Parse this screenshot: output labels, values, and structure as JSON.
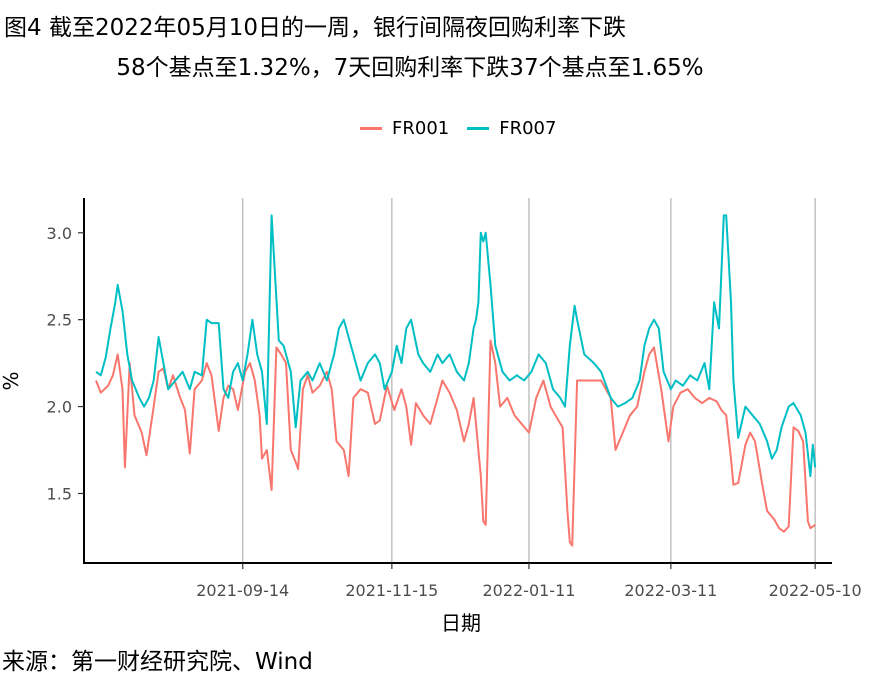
{
  "title": {
    "line1": "图4  截至2022年05月10日的一周，银行间隔夜回购利率下跌",
    "line2": "58个基点至1.32%，7天回购利率下跌37个基点至1.65%"
  },
  "source": "来源：第一财经研究院、Wind",
  "chart_data": {
    "type": "line",
    "xlabel": "日期",
    "ylabel": "%",
    "ylim": [
      1.1,
      3.2
    ],
    "yticks": [
      1.5,
      2.0,
      2.5,
      3.0
    ],
    "ytick_labels": [
      "1.5",
      "2.0",
      "2.5",
      "3.0"
    ],
    "xlim": [
      "2021-07-10",
      "2022-05-17"
    ],
    "xticks": [
      "2021-09-14",
      "2021-11-15",
      "2022-01-11",
      "2022-03-11",
      "2022-05-10"
    ],
    "grid": "vertical-major",
    "legend_position": "top",
    "colors": {
      "FR001": "#F8766D",
      "FR007": "#00BFC4"
    },
    "series": [
      {
        "name": "FR001",
        "points": [
          [
            "2021-07-15",
            2.15
          ],
          [
            "2021-07-17",
            2.08
          ],
          [
            "2021-07-20",
            2.12
          ],
          [
            "2021-07-22",
            2.18
          ],
          [
            "2021-07-24",
            2.3
          ],
          [
            "2021-07-26",
            2.1
          ],
          [
            "2021-07-27",
            1.65
          ],
          [
            "2021-07-29",
            2.25
          ],
          [
            "2021-07-31",
            1.95
          ],
          [
            "2021-08-03",
            1.85
          ],
          [
            "2021-08-05",
            1.72
          ],
          [
            "2021-08-08",
            2.0
          ],
          [
            "2021-08-10",
            2.2
          ],
          [
            "2021-08-12",
            2.22
          ],
          [
            "2021-08-14",
            2.1
          ],
          [
            "2021-08-16",
            2.18
          ],
          [
            "2021-08-19",
            2.05
          ],
          [
            "2021-08-21",
            1.98
          ],
          [
            "2021-08-23",
            1.73
          ],
          [
            "2021-08-25",
            2.1
          ],
          [
            "2021-08-28",
            2.15
          ],
          [
            "2021-08-30",
            2.25
          ],
          [
            "2021-09-01",
            2.18
          ],
          [
            "2021-09-04",
            1.86
          ],
          [
            "2021-09-06",
            2.05
          ],
          [
            "2021-09-08",
            2.12
          ],
          [
            "2021-09-10",
            2.1
          ],
          [
            "2021-09-12",
            1.98
          ],
          [
            "2021-09-15",
            2.2
          ],
          [
            "2021-09-17",
            2.25
          ],
          [
            "2021-09-19",
            2.15
          ],
          [
            "2021-09-21",
            1.95
          ],
          [
            "2021-09-22",
            1.7
          ],
          [
            "2021-09-24",
            1.75
          ],
          [
            "2021-09-26",
            1.52
          ],
          [
            "2021-09-28",
            2.34
          ],
          [
            "2021-09-30",
            2.3
          ],
          [
            "2021-10-02",
            2.25
          ],
          [
            "2021-10-04",
            1.75
          ],
          [
            "2021-10-06",
            1.68
          ],
          [
            "2021-10-07",
            1.64
          ],
          [
            "2021-10-09",
            2.1
          ],
          [
            "2021-10-11",
            2.18
          ],
          [
            "2021-10-13",
            2.08
          ],
          [
            "2021-10-16",
            2.12
          ],
          [
            "2021-10-19",
            2.2
          ],
          [
            "2021-10-21",
            2.1
          ],
          [
            "2021-10-23",
            1.8
          ],
          [
            "2021-10-26",
            1.75
          ],
          [
            "2021-10-28",
            1.6
          ],
          [
            "2021-10-30",
            2.05
          ],
          [
            "2021-11-02",
            2.1
          ],
          [
            "2021-11-05",
            2.08
          ],
          [
            "2021-11-08",
            1.9
          ],
          [
            "2021-11-10",
            1.92
          ],
          [
            "2021-11-13",
            2.12
          ],
          [
            "2021-11-16",
            1.98
          ],
          [
            "2021-11-19",
            2.1
          ],
          [
            "2021-11-21",
            2.0
          ],
          [
            "2021-11-23",
            1.78
          ],
          [
            "2021-11-25",
            2.02
          ],
          [
            "2021-11-28",
            1.95
          ],
          [
            "2021-12-01",
            1.9
          ],
          [
            "2021-12-04",
            2.05
          ],
          [
            "2021-12-06",
            2.15
          ],
          [
            "2021-12-09",
            2.08
          ],
          [
            "2021-12-12",
            1.98
          ],
          [
            "2021-12-15",
            1.8
          ],
          [
            "2021-12-17",
            1.9
          ],
          [
            "2021-12-19",
            2.05
          ],
          [
            "2021-12-22",
            1.6
          ],
          [
            "2021-12-23",
            1.34
          ],
          [
            "2021-12-24",
            1.32
          ],
          [
            "2021-12-26",
            2.38
          ],
          [
            "2021-12-28",
            2.25
          ],
          [
            "2021-12-30",
            2.0
          ],
          [
            "2022-01-02",
            2.05
          ],
          [
            "2022-01-05",
            1.95
          ],
          [
            "2022-01-08",
            1.9
          ],
          [
            "2022-01-11",
            1.85
          ],
          [
            "2022-01-14",
            2.05
          ],
          [
            "2022-01-17",
            2.15
          ],
          [
            "2022-01-20",
            2.0
          ],
          [
            "2022-01-22",
            1.95
          ],
          [
            "2022-01-25",
            1.88
          ],
          [
            "2022-01-27",
            1.4
          ],
          [
            "2022-01-28",
            1.22
          ],
          [
            "2022-01-29",
            1.2
          ],
          [
            "2022-01-31",
            2.15
          ],
          [
            "2022-02-07",
            2.15
          ],
          [
            "2022-02-10",
            2.15
          ],
          [
            "2022-02-14",
            2.05
          ],
          [
            "2022-02-16",
            1.75
          ],
          [
            "2022-02-19",
            1.85
          ],
          [
            "2022-02-22",
            1.95
          ],
          [
            "2022-02-25",
            2.0
          ],
          [
            "2022-02-28",
            2.2
          ],
          [
            "2022-03-02",
            2.3
          ],
          [
            "2022-03-04",
            2.34
          ],
          [
            "2022-03-07",
            2.1
          ],
          [
            "2022-03-10",
            1.8
          ],
          [
            "2022-03-12",
            2.0
          ],
          [
            "2022-03-15",
            2.08
          ],
          [
            "2022-03-18",
            2.1
          ],
          [
            "2022-03-21",
            2.05
          ],
          [
            "2022-03-24",
            2.02
          ],
          [
            "2022-03-27",
            2.05
          ],
          [
            "2022-03-30",
            2.03
          ],
          [
            "2022-04-01",
            1.98
          ],
          [
            "2022-04-03",
            1.95
          ],
          [
            "2022-04-05",
            1.7
          ],
          [
            "2022-04-06",
            1.55
          ],
          [
            "2022-04-08",
            1.56
          ],
          [
            "2022-04-11",
            1.78
          ],
          [
            "2022-04-13",
            1.85
          ],
          [
            "2022-04-15",
            1.8
          ],
          [
            "2022-04-18",
            1.55
          ],
          [
            "2022-04-20",
            1.4
          ],
          [
            "2022-04-23",
            1.35
          ],
          [
            "2022-04-25",
            1.3
          ],
          [
            "2022-04-27",
            1.28
          ],
          [
            "2022-04-29",
            1.31
          ],
          [
            "2022-05-01",
            1.88
          ],
          [
            "2022-05-03",
            1.86
          ],
          [
            "2022-05-05",
            1.8
          ],
          [
            "2022-05-07",
            1.34
          ],
          [
            "2022-05-08",
            1.3
          ],
          [
            "2022-05-10",
            1.32
          ]
        ]
      },
      {
        "name": "FR007",
        "points": [
          [
            "2021-07-15",
            2.2
          ],
          [
            "2021-07-17",
            2.18
          ],
          [
            "2021-07-19",
            2.28
          ],
          [
            "2021-07-21",
            2.45
          ],
          [
            "2021-07-23",
            2.6
          ],
          [
            "2021-07-24",
            2.7
          ],
          [
            "2021-07-26",
            2.55
          ],
          [
            "2021-07-28",
            2.3
          ],
          [
            "2021-07-30",
            2.15
          ],
          [
            "2021-08-02",
            2.05
          ],
          [
            "2021-08-04",
            2.0
          ],
          [
            "2021-08-06",
            2.05
          ],
          [
            "2021-08-08",
            2.15
          ],
          [
            "2021-08-10",
            2.4
          ],
          [
            "2021-08-12",
            2.25
          ],
          [
            "2021-08-14",
            2.1
          ],
          [
            "2021-08-17",
            2.15
          ],
          [
            "2021-08-20",
            2.2
          ],
          [
            "2021-08-23",
            2.1
          ],
          [
            "2021-08-25",
            2.2
          ],
          [
            "2021-08-28",
            2.18
          ],
          [
            "2021-08-30",
            2.5
          ],
          [
            "2021-09-01",
            2.48
          ],
          [
            "2021-09-04",
            2.48
          ],
          [
            "2021-09-06",
            2.1
          ],
          [
            "2021-09-08",
            2.05
          ],
          [
            "2021-09-10",
            2.2
          ],
          [
            "2021-09-12",
            2.25
          ],
          [
            "2021-09-14",
            2.15
          ],
          [
            "2021-09-16",
            2.3
          ],
          [
            "2021-09-18",
            2.5
          ],
          [
            "2021-09-20",
            2.3
          ],
          [
            "2021-09-22",
            2.2
          ],
          [
            "2021-09-24",
            1.9
          ],
          [
            "2021-09-26",
            3.1
          ],
          [
            "2021-09-29",
            2.38
          ],
          [
            "2021-10-01",
            2.35
          ],
          [
            "2021-10-04",
            2.2
          ],
          [
            "2021-10-06",
            1.88
          ],
          [
            "2021-10-08",
            2.15
          ],
          [
            "2021-10-11",
            2.2
          ],
          [
            "2021-10-13",
            2.15
          ],
          [
            "2021-10-16",
            2.25
          ],
          [
            "2021-10-19",
            2.15
          ],
          [
            "2021-10-22",
            2.3
          ],
          [
            "2021-10-24",
            2.45
          ],
          [
            "2021-10-26",
            2.5
          ],
          [
            "2021-10-28",
            2.4
          ],
          [
            "2021-10-31",
            2.25
          ],
          [
            "2021-11-02",
            2.15
          ],
          [
            "2021-11-05",
            2.25
          ],
          [
            "2021-11-08",
            2.3
          ],
          [
            "2021-11-10",
            2.25
          ],
          [
            "2021-11-12",
            2.1
          ],
          [
            "2021-11-15",
            2.2
          ],
          [
            "2021-11-17",
            2.35
          ],
          [
            "2021-11-19",
            2.25
          ],
          [
            "2021-11-21",
            2.45
          ],
          [
            "2021-11-23",
            2.5
          ],
          [
            "2021-11-26",
            2.3
          ],
          [
            "2021-11-28",
            2.25
          ],
          [
            "2021-12-01",
            2.2
          ],
          [
            "2021-12-04",
            2.3
          ],
          [
            "2021-12-06",
            2.25
          ],
          [
            "2021-12-09",
            2.3
          ],
          [
            "2021-12-12",
            2.2
          ],
          [
            "2021-12-15",
            2.15
          ],
          [
            "2021-12-17",
            2.25
          ],
          [
            "2021-12-19",
            2.45
          ],
          [
            "2021-12-20",
            2.5
          ],
          [
            "2021-12-21",
            2.6
          ],
          [
            "2021-12-22",
            3.0
          ],
          [
            "2021-12-23",
            2.95
          ],
          [
            "2021-12-24",
            3.0
          ],
          [
            "2021-12-26",
            2.7
          ],
          [
            "2021-12-28",
            2.35
          ],
          [
            "2021-12-31",
            2.2
          ],
          [
            "2022-01-03",
            2.15
          ],
          [
            "2022-01-06",
            2.18
          ],
          [
            "2022-01-09",
            2.15
          ],
          [
            "2022-01-12",
            2.2
          ],
          [
            "2022-01-15",
            2.3
          ],
          [
            "2022-01-18",
            2.25
          ],
          [
            "2022-01-21",
            2.1
          ],
          [
            "2022-01-24",
            2.05
          ],
          [
            "2022-01-26",
            2.0
          ],
          [
            "2022-01-28",
            2.35
          ],
          [
            "2022-01-30",
            2.58
          ],
          [
            "2022-01-31",
            2.5
          ],
          [
            "2022-02-03",
            2.3
          ],
          [
            "2022-02-07",
            2.25
          ],
          [
            "2022-02-10",
            2.2
          ],
          [
            "2022-02-14",
            2.05
          ],
          [
            "2022-02-17",
            2.0
          ],
          [
            "2022-02-20",
            2.02
          ],
          [
            "2022-02-23",
            2.05
          ],
          [
            "2022-02-26",
            2.15
          ],
          [
            "2022-02-28",
            2.35
          ],
          [
            "2022-03-02",
            2.45
          ],
          [
            "2022-03-04",
            2.5
          ],
          [
            "2022-03-06",
            2.45
          ],
          [
            "2022-03-08",
            2.2
          ],
          [
            "2022-03-11",
            2.1
          ],
          [
            "2022-03-13",
            2.15
          ],
          [
            "2022-03-16",
            2.12
          ],
          [
            "2022-03-19",
            2.18
          ],
          [
            "2022-03-22",
            2.15
          ],
          [
            "2022-03-25",
            2.25
          ],
          [
            "2022-03-27",
            2.1
          ],
          [
            "2022-03-29",
            2.6
          ],
          [
            "2022-03-31",
            2.45
          ],
          [
            "2022-04-02",
            3.1
          ],
          [
            "2022-04-03",
            3.1
          ],
          [
            "2022-04-05",
            2.6
          ],
          [
            "2022-04-06",
            2.15
          ],
          [
            "2022-04-08",
            1.82
          ],
          [
            "2022-04-11",
            2.0
          ],
          [
            "2022-04-14",
            1.95
          ],
          [
            "2022-04-17",
            1.9
          ],
          [
            "2022-04-20",
            1.8
          ],
          [
            "2022-04-22",
            1.7
          ],
          [
            "2022-04-24",
            1.75
          ],
          [
            "2022-04-26",
            1.88
          ],
          [
            "2022-04-29",
            2.0
          ],
          [
            "2022-05-01",
            2.02
          ],
          [
            "2022-05-04",
            1.95
          ],
          [
            "2022-05-06",
            1.85
          ],
          [
            "2022-05-08",
            1.6
          ],
          [
            "2022-05-09",
            1.78
          ],
          [
            "2022-05-10",
            1.65
          ]
        ]
      }
    ]
  }
}
